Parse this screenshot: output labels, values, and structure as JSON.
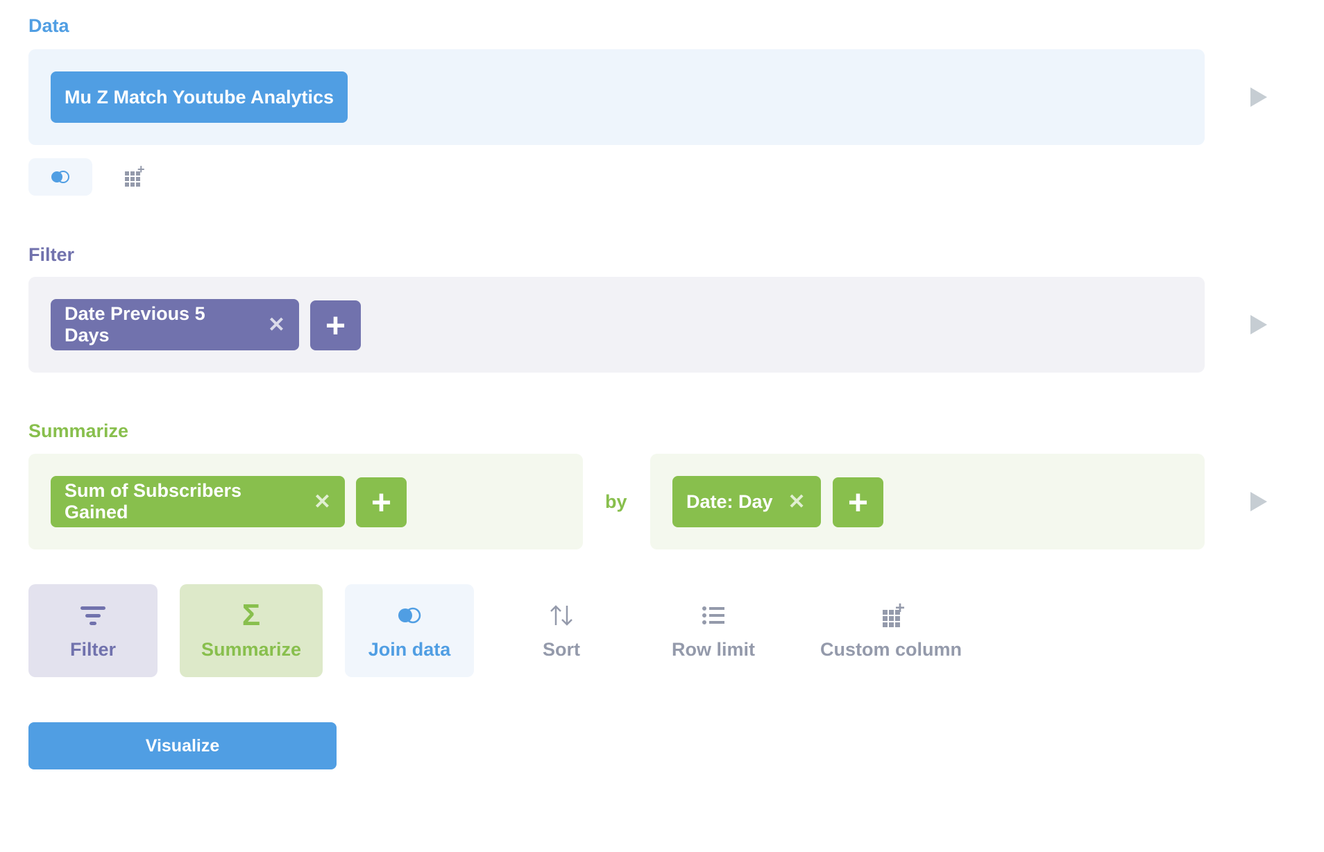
{
  "data_section": {
    "label": "Data",
    "source": "Mu Z Match Youtube Analytics"
  },
  "filter_section": {
    "label": "Filter",
    "filters": [
      "Date Previous 5 Days"
    ]
  },
  "summarize_section": {
    "label": "Summarize",
    "metrics": [
      "Sum of Subscribers Gained"
    ],
    "by_label": "by",
    "groupings": [
      "Date: Day"
    ]
  },
  "actions": [
    {
      "label": "Filter",
      "icon": "filter-icon"
    },
    {
      "label": "Summarize",
      "icon": "sigma-icon"
    },
    {
      "label": "Join data",
      "icon": "join-icon"
    },
    {
      "label": "Sort",
      "icon": "sort-icon"
    },
    {
      "label": "Row limit",
      "icon": "list-icon"
    },
    {
      "label": "Custom column",
      "icon": "custom-column-icon"
    }
  ],
  "visualize_label": "Visualize",
  "colors": {
    "data": "#509ee3",
    "filter": "#7172ad",
    "summarize": "#88bf4d",
    "gray": "#949aab"
  }
}
